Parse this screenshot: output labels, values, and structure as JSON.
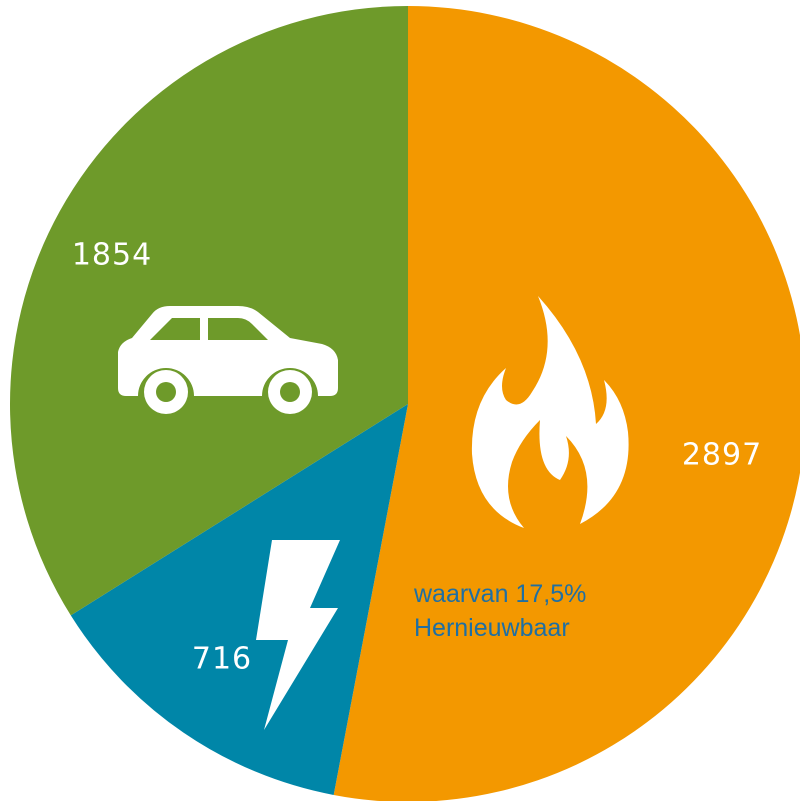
{
  "chart_data": {
    "type": "pie",
    "categories": [
      null,
      null,
      null
    ],
    "values": [
      2897,
      716,
      1854
    ],
    "colors": [
      "#f39800",
      "#0086a8",
      "#6e9a2a"
    ],
    "start_angle": 0,
    "direction": "clockwise",
    "annotation": [
      "waarvan 17,5%",
      "Hernieuwbaar"
    ]
  }
}
